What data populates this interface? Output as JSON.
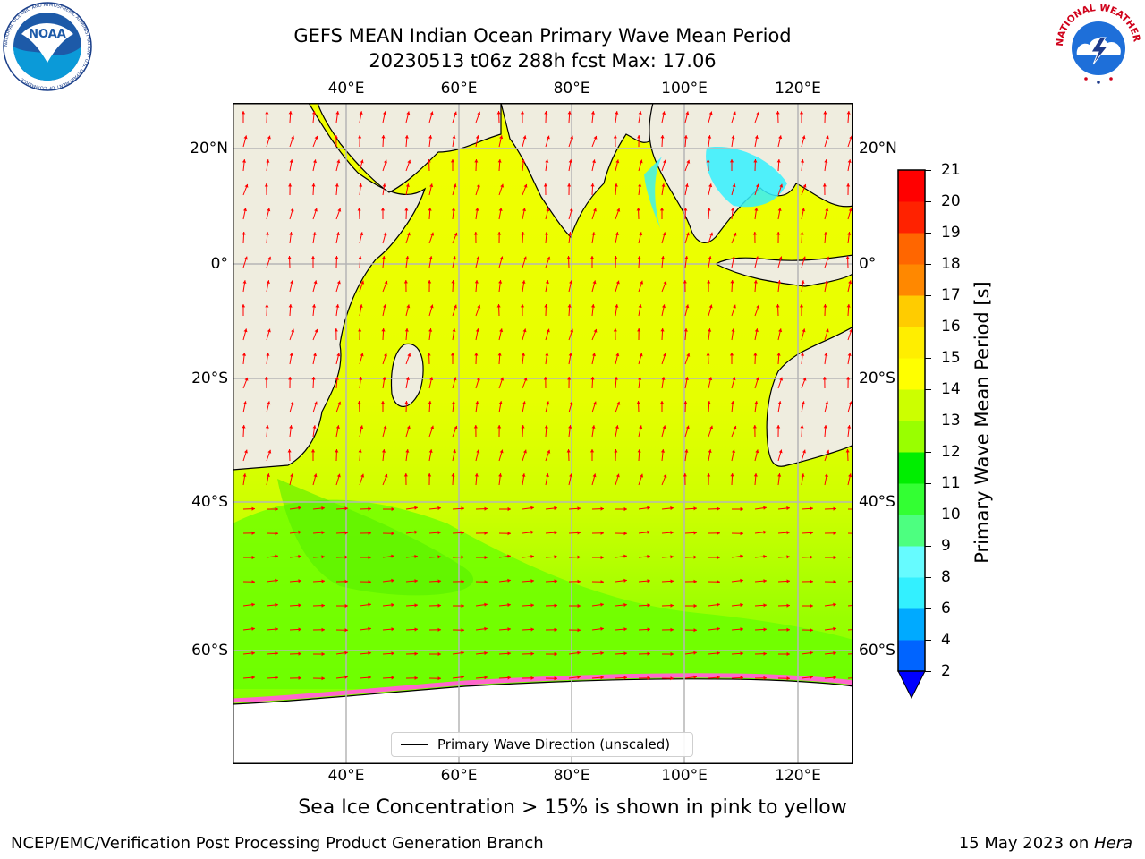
{
  "header": {
    "title_line1": "GEFS MEAN Indian Ocean Primary Wave Mean Period",
    "title_line2": "20230513 t06z 288h fcst   Max: 17.06"
  },
  "map": {
    "lon_ticks_top": [
      "40°E",
      "60°E",
      "80°E",
      "100°E",
      "120°E"
    ],
    "lon_ticks_bottom": [
      "40°E",
      "60°E",
      "80°E",
      "100°E",
      "120°E"
    ],
    "lat_ticks_left": [
      "20°N",
      "0°",
      "20°S",
      "40°S",
      "60°S"
    ],
    "lat_ticks_right": [
      "20°N",
      "0°",
      "20°S",
      "40°S",
      "60°S"
    ],
    "legend_label": "Primary Wave Direction (unscaled)",
    "colors": {
      "land": "#efeddf",
      "arrow": "#ff0000",
      "sea_ice": "#ff66cc",
      "frame": "#000000",
      "grid": "#b5b5b5"
    }
  },
  "colorbar": {
    "label": "Primary Wave Mean Period [s]",
    "tick_labels": [
      "2",
      "4",
      "6",
      "8",
      "9",
      "10",
      "11",
      "12",
      "13",
      "14",
      "15",
      "16",
      "17",
      "18",
      "19",
      "20",
      "21"
    ],
    "colors": [
      "#0064ff",
      "#00aaff",
      "#00e5ff",
      "#33f0ff",
      "#66fbff",
      "#99fff0",
      "#4dff80",
      "#33ff33",
      "#00ee00",
      "#66ff00",
      "#99ff00",
      "#ccff00",
      "#e6ff00",
      "#ffff00",
      "#ffee00",
      "#ffcc00",
      "#ffaa00",
      "#ff8800",
      "#ff6600",
      "#ff4400",
      "#ff2200",
      "#ff0000"
    ],
    "extend_color": "#0000ff"
  },
  "subtitle": "Sea Ice Concentration > 15% is shown in pink to yellow",
  "footer": {
    "left": "NCEP/EMC/Verification Post Processing Product Generation Branch",
    "right_prefix": "15 May 2023 on ",
    "right_host": "Hera"
  },
  "logos": {
    "noaa_text": "NOAA",
    "noaa_ring": "NATIONAL OCEANIC AND ATMOSPHERIC ADMINISTRATION · U.S. DEPARTMENT OF COMMERCE",
    "nws_ring": "NATIONAL WEATHER SERVICE"
  }
}
